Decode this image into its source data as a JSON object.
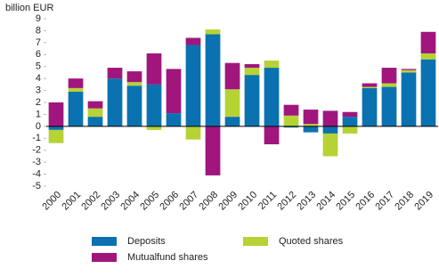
{
  "chart_data": {
    "type": "bar",
    "stacked": true,
    "y_label": "billion EUR",
    "categories": [
      "2000",
      "2001",
      "2002",
      "2003",
      "2004",
      "2005",
      "2006",
      "2007",
      "2008",
      "2009",
      "2010",
      "2011",
      "2012",
      "2013",
      "2014",
      "2015",
      "2016",
      "2017",
      "2018",
      "2019"
    ],
    "series": [
      {
        "name": "Deposits",
        "color": "#0a72b0",
        "values": [
          -0.3,
          2.9,
          0.8,
          4.0,
          3.4,
          3.5,
          1.1,
          6.8,
          7.7,
          0.8,
          4.3,
          4.9,
          -0.1,
          -0.5,
          -0.6,
          0.8,
          3.2,
          3.3,
          4.5,
          5.6
        ]
      },
      {
        "name": "Quoted shares",
        "color": "#b5d334",
        "values": [
          -1.1,
          0.3,
          0.7,
          0,
          0.3,
          -0.3,
          0,
          -1.1,
          0.4,
          2.3,
          0.6,
          0.6,
          0.9,
          0.2,
          -1.9,
          -0.6,
          0.1,
          0.3,
          0.2,
          0.5
        ]
      },
      {
        "name": "Mutualfund shares",
        "color": "#a0167d",
        "values": [
          2.0,
          0.8,
          0.6,
          0.9,
          0.9,
          2.6,
          3.7,
          0.6,
          -4.1,
          2.2,
          0.3,
          -1.5,
          0.9,
          1.2,
          1.3,
          0.4,
          0.3,
          1.3,
          0.1,
          1.8
        ]
      }
    ],
    "ylim": [
      -5,
      9
    ],
    "yticks": [
      -5,
      -4,
      -3,
      -2,
      -1,
      0,
      1,
      2,
      3,
      4,
      5,
      6,
      7,
      8,
      9
    ],
    "grid": false
  }
}
